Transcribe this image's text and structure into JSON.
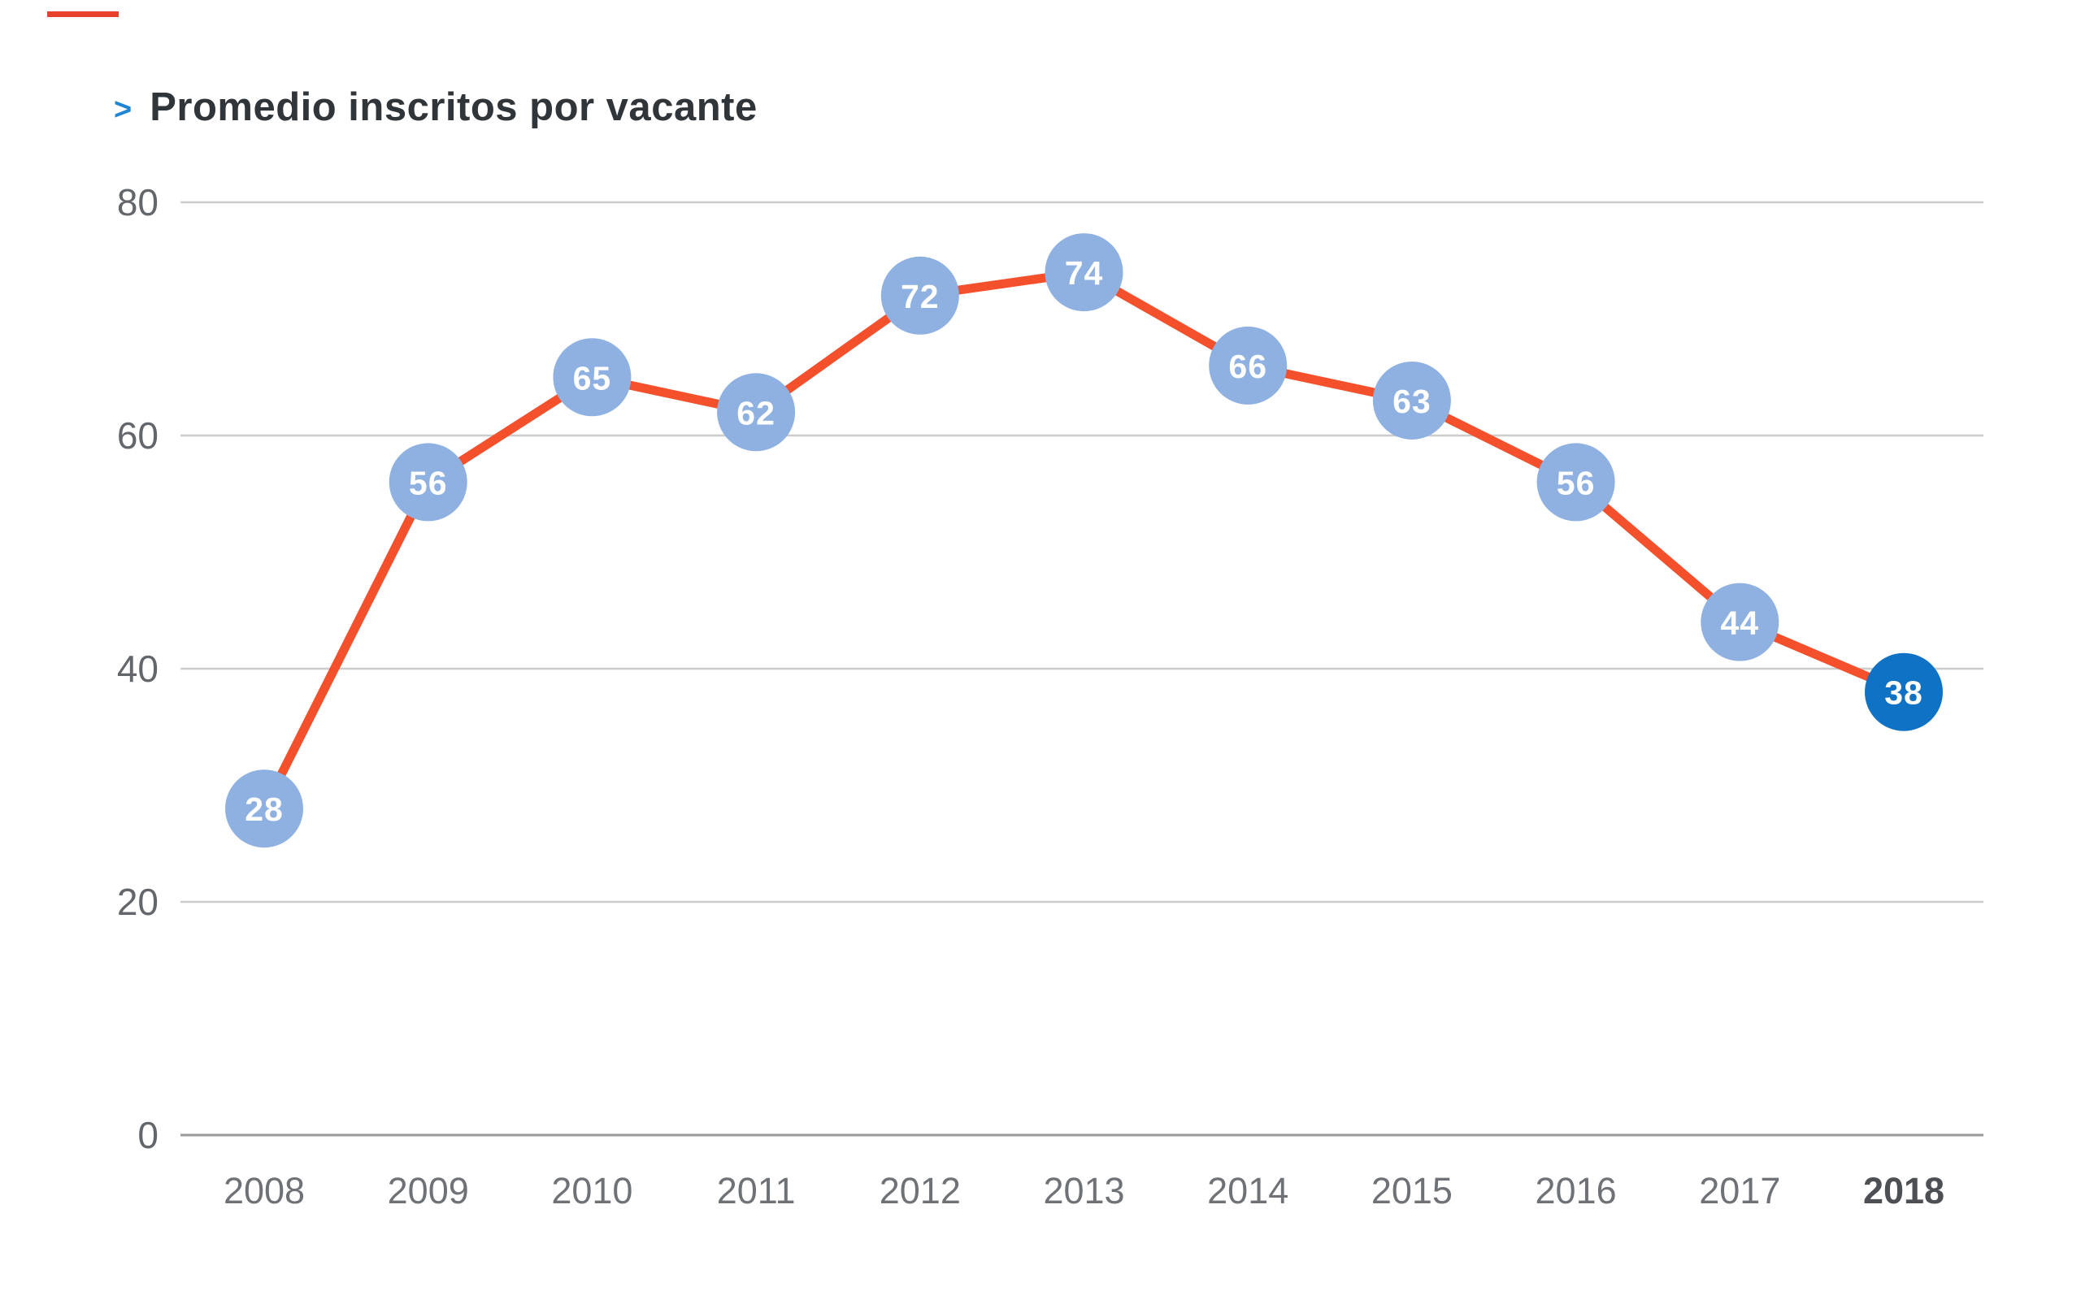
{
  "header": {
    "chevron": ">",
    "title": "Promedio inscritos por vacante"
  },
  "chart_data": {
    "type": "line",
    "title": "Promedio inscritos por vacante",
    "x": [
      "2008",
      "2009",
      "2010",
      "2011",
      "2012",
      "2013",
      "2014",
      "2015",
      "2016",
      "2017",
      "2018"
    ],
    "values": [
      28,
      56,
      65,
      62,
      72,
      74,
      66,
      63,
      56,
      44,
      38
    ],
    "highlight_index": 10,
    "highlight_x_label": "2018",
    "ylim": [
      0,
      80
    ],
    "yticks": [
      0,
      20,
      40,
      60,
      80
    ],
    "xlabel": "",
    "ylabel": "",
    "legend": "none",
    "grid": "horizontal",
    "marker_shape": "circle",
    "colors": {
      "line": "#F4502C",
      "marker": "#8FB1E2",
      "marker_highlight": "#0F72C4",
      "marker_text": "#FFFFFF",
      "grid": "#CCCCCC",
      "axis_line": "#999999",
      "y_tick_text": "#63676B",
      "x_tick_text": "#6E7276",
      "x_tick_highlight_text": "#4C5054",
      "title_text": "#30353A",
      "chevron": "#1F86D6",
      "accent_dash": "#E8402C"
    }
  }
}
